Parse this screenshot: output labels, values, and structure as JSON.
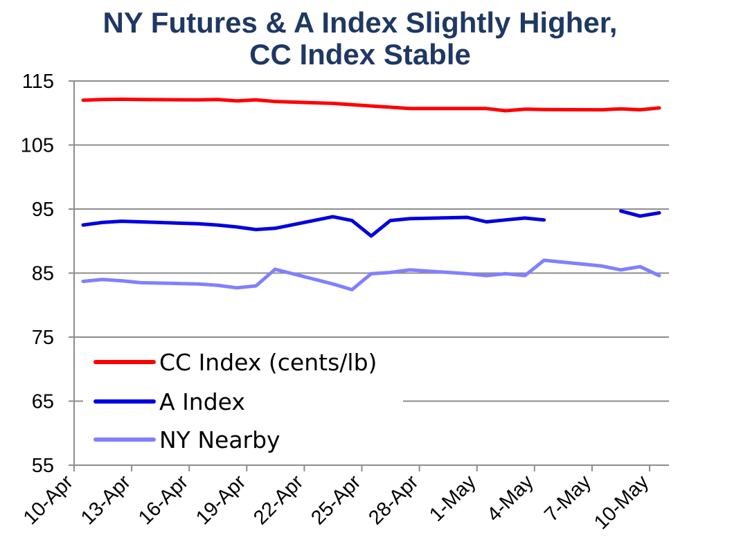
{
  "chart_data": {
    "type": "line",
    "title": "NY Futures & A Index Slightly Higher, CC Index Stable",
    "title_lines": [
      "NY Futures & A Index Slightly Higher,",
      "CC Index Stable"
    ],
    "xlabel": "",
    "ylabel": "",
    "ylim": [
      55,
      115
    ],
    "yticks": [
      55,
      65,
      75,
      85,
      95,
      105,
      115
    ],
    "xlim": [
      "2012-04-10",
      "2012-05-10"
    ],
    "xtick_labels": [
      "10-Apr",
      "13-Apr",
      "16-Apr",
      "19-Apr",
      "22-Apr",
      "25-Apr",
      "28-Apr",
      "1-May",
      "4-May",
      "7-May",
      "10-May"
    ],
    "grid": "horizontal",
    "legend_position": "bottom-left",
    "series": [
      {
        "name": "CC Index (cents/lb)",
        "color": "#ff0000",
        "points": [
          [
            "2012-04-10",
            112.0
          ],
          [
            "2012-04-11",
            112.1
          ],
          [
            "2012-04-12",
            112.15
          ],
          [
            "2012-04-13",
            112.1
          ],
          [
            "2012-04-16",
            112.05
          ],
          [
            "2012-04-17",
            112.1
          ],
          [
            "2012-04-18",
            111.9
          ],
          [
            "2012-04-19",
            112.05
          ],
          [
            "2012-04-20",
            111.8
          ],
          [
            "2012-04-23",
            111.5
          ],
          [
            "2012-04-24",
            111.3
          ],
          [
            "2012-04-25",
            111.1
          ],
          [
            "2012-04-26",
            110.9
          ],
          [
            "2012-04-27",
            110.7
          ],
          [
            "2012-04-30",
            110.7
          ],
          [
            "2012-05-01",
            110.7
          ],
          [
            "2012-05-02",
            110.35
          ],
          [
            "2012-05-03",
            110.6
          ],
          [
            "2012-05-04",
            110.55
          ],
          [
            "2012-05-07",
            110.5
          ],
          [
            "2012-05-08",
            110.65
          ],
          [
            "2012-05-09",
            110.5
          ],
          [
            "2012-05-10",
            110.8
          ]
        ]
      },
      {
        "name": "A Index",
        "color": "#0000e0",
        "points": [
          [
            "2012-04-10",
            92.5
          ],
          [
            "2012-04-11",
            92.9
          ],
          [
            "2012-04-12",
            93.1
          ],
          [
            "2012-04-13",
            93.0
          ],
          [
            "2012-04-16",
            92.7
          ],
          [
            "2012-04-17",
            92.5
          ],
          [
            "2012-04-18",
            92.2
          ],
          [
            "2012-04-19",
            91.8
          ],
          [
            "2012-04-20",
            92.0
          ],
          [
            "2012-04-23",
            93.8
          ],
          [
            "2012-04-24",
            93.2
          ],
          [
            "2012-04-25",
            90.8
          ],
          [
            "2012-04-26",
            93.2
          ],
          [
            "2012-04-27",
            93.5
          ],
          [
            "2012-04-30",
            93.7
          ],
          [
            "2012-05-01",
            93.0
          ],
          [
            "2012-05-02",
            93.3
          ],
          [
            "2012-05-03",
            93.6
          ],
          [
            "2012-05-04",
            93.3
          ],
          [
            "2012-05-07",
            null
          ],
          [
            "2012-05-08",
            94.7
          ],
          [
            "2012-05-09",
            93.9
          ],
          [
            "2012-05-10",
            94.4
          ]
        ]
      },
      {
        "name": "NY Nearby",
        "color": "#8080ff",
        "points": [
          [
            "2012-04-10",
            83.7
          ],
          [
            "2012-04-11",
            84.0
          ],
          [
            "2012-04-12",
            83.8
          ],
          [
            "2012-04-13",
            83.5
          ],
          [
            "2012-04-16",
            83.3
          ],
          [
            "2012-04-17",
            83.1
          ],
          [
            "2012-04-18",
            82.7
          ],
          [
            "2012-04-19",
            83.0
          ],
          [
            "2012-04-20",
            85.6
          ],
          [
            "2012-04-23",
            83.3
          ],
          [
            "2012-04-24",
            82.4
          ],
          [
            "2012-04-25",
            84.9
          ],
          [
            "2012-04-26",
            85.1
          ],
          [
            "2012-04-27",
            85.5
          ],
          [
            "2012-04-30",
            84.9
          ],
          [
            "2012-05-01",
            84.6
          ],
          [
            "2012-05-02",
            84.9
          ],
          [
            "2012-05-03",
            84.6
          ],
          [
            "2012-05-04",
            87.0
          ],
          [
            "2012-05-07",
            86.1
          ],
          [
            "2012-05-08",
            85.5
          ],
          [
            "2012-05-09",
            86.0
          ],
          [
            "2012-05-10",
            84.6
          ]
        ]
      }
    ]
  }
}
